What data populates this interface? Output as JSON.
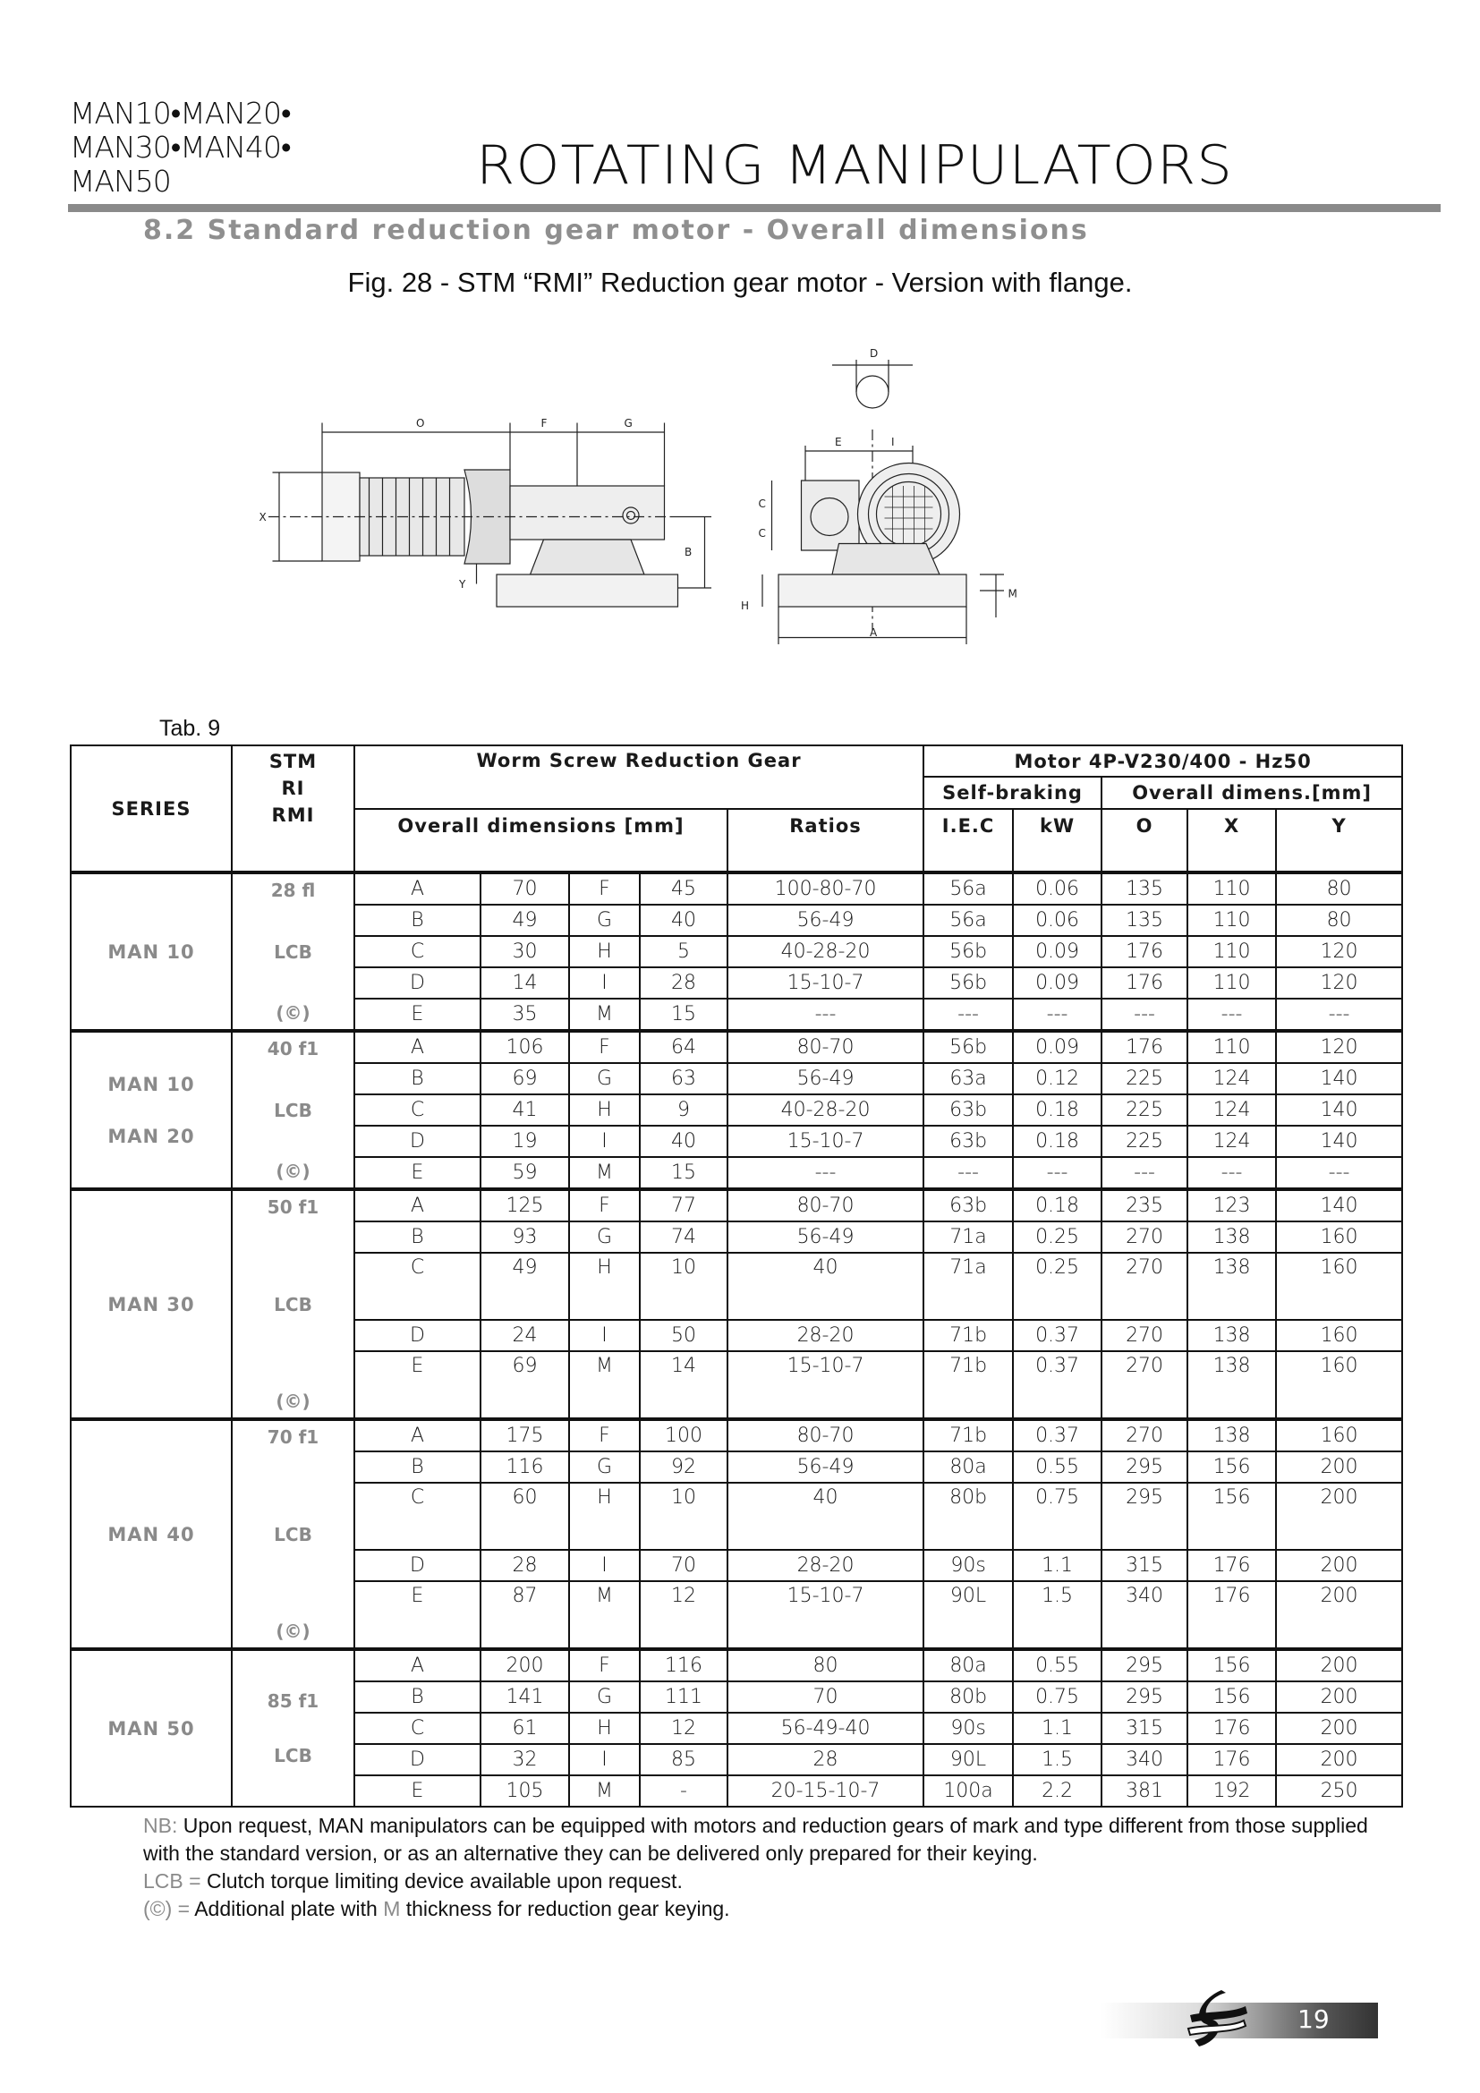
{
  "header": {
    "series_lines": [
      "MAN10•MAN20•",
      "MAN30•MAN40•",
      "MAN50"
    ],
    "title": "ROTATING MANIPULATORS",
    "section": "8.2  Standard reduction gear motor - Overall dimensions",
    "figure_caption": "Fig. 28 - STM “RMI” Reduction gear motor - Version with flange."
  },
  "drawing": {
    "labels": {
      "O": "O",
      "F": "F",
      "G": "G",
      "X": "X",
      "Y": "Y",
      "B": "B",
      "D": "D",
      "E": "E",
      "I": "I",
      "C1": "C",
      "C2": "C",
      "H": "H",
      "M": "M",
      "A": "A"
    }
  },
  "table": {
    "label": "Tab. 9",
    "headers": {
      "series": "SERIES",
      "stm": [
        "STM",
        "RI",
        "RMI"
      ],
      "worm": "Worm Screw Reduction Gear",
      "motor": "Motor  4P-V230/400 - Hz50",
      "self_braking": "Self-braking",
      "overall_motor": "Overall dimens.[mm]",
      "overall_gear": "Overall dimensions [mm]",
      "ratios": "Ratios",
      "iec": "I.E.C",
      "kw": "kW",
      "o": "O",
      "x": "X",
      "y": "Y"
    },
    "groups": [
      {
        "series": [
          "MAN 10"
        ],
        "stm": [
          "28 fl",
          "LCB",
          "(©)"
        ],
        "rows": [
          [
            "A",
            "70",
            "F",
            "45",
            "100-80-70",
            "56a",
            "0.06",
            "135",
            "110",
            "80"
          ],
          [
            "B",
            "49",
            "G",
            "40",
            "56-49",
            "56a",
            "0.06",
            "135",
            "110",
            "80"
          ],
          [
            "C",
            "30",
            "H",
            "5",
            "40-28-20",
            "56b",
            "0.09",
            "176",
            "110",
            "120"
          ],
          [
            "D",
            "14",
            "I",
            "28",
            "15-10-7",
            "56b",
            "0.09",
            "176",
            "110",
            "120"
          ],
          [
            "E",
            "35",
            "M",
            "15",
            "---",
            "---",
            "---",
            "---",
            "---",
            "---"
          ]
        ]
      },
      {
        "series": [
          "MAN 10",
          "MAN 20"
        ],
        "stm": [
          "40 f1",
          "LCB",
          "(©)"
        ],
        "rows": [
          [
            "A",
            "106",
            "F",
            "64",
            "80-70",
            "56b",
            "0.09",
            "176",
            "110",
            "120"
          ],
          [
            "B",
            "69",
            "G",
            "63",
            "56-49",
            "63a",
            "0.12",
            "225",
            "124",
            "140"
          ],
          [
            "C",
            "41",
            "H",
            "9",
            "40-28-20",
            "63b",
            "0.18",
            "225",
            "124",
            "140"
          ],
          [
            "D",
            "19",
            "I",
            "40",
            "15-10-7",
            "63b",
            "0.18",
            "225",
            "124",
            "140"
          ],
          [
            "E",
            "59",
            "M",
            "15",
            "---",
            "---",
            "---",
            "---",
            "---",
            "---"
          ]
        ]
      },
      {
        "series": [
          "MAN 30"
        ],
        "stm": [
          "50 f1",
          "LCB",
          "(©)"
        ],
        "rows": [
          [
            "A",
            "125",
            "F",
            "77",
            "80-70",
            "63b",
            "0.18",
            "235",
            "123",
            "140"
          ],
          [
            "B",
            "93",
            "G",
            "74",
            "56-49",
            "71a",
            "0.25",
            "270",
            "138",
            "160"
          ],
          [
            "C",
            "49",
            "H",
            "10",
            "40",
            "71a",
            "0.25",
            "270",
            "138",
            "160"
          ],
          [
            "D",
            "24",
            "I",
            "50",
            "28-20",
            "71b",
            "0.37",
            "270",
            "138",
            "160"
          ],
          [
            "E",
            "69",
            "M",
            "14",
            "15-10-7",
            "71b",
            "0.37",
            "270",
            "138",
            "160"
          ]
        ]
      },
      {
        "series": [
          "MAN 40"
        ],
        "stm": [
          "70 f1",
          "LCB",
          "(©)"
        ],
        "rows": [
          [
            "A",
            "175",
            "F",
            "100",
            "80-70",
            "71b",
            "0.37",
            "270",
            "138",
            "160"
          ],
          [
            "B",
            "116",
            "G",
            "92",
            "56-49",
            "80a",
            "0.55",
            "295",
            "156",
            "200"
          ],
          [
            "C",
            "60",
            "H",
            "10",
            "40",
            "80b",
            "0.75",
            "295",
            "156",
            "200"
          ],
          [
            "D",
            "28",
            "I",
            "70",
            "28-20",
            "90s",
            "1.1",
            "315",
            "176",
            "200"
          ],
          [
            "E",
            "87",
            "M",
            "12",
            "15-10-7",
            "90L",
            "1.5",
            "340",
            "176",
            "200"
          ]
        ]
      },
      {
        "series": [
          "MAN 50"
        ],
        "stm": [
          "85 f1",
          "LCB"
        ],
        "rows": [
          [
            "A",
            "200",
            "F",
            "116",
            "80",
            "80a",
            "0.55",
            "295",
            "156",
            "200"
          ],
          [
            "B",
            "141",
            "G",
            "111",
            "70",
            "80b",
            "0.75",
            "295",
            "156",
            "200"
          ],
          [
            "C",
            "61",
            "H",
            "12",
            "56-49-40",
            "90s",
            "1.1",
            "315",
            "176",
            "200"
          ],
          [
            "D",
            "32",
            "I",
            "85",
            "28",
            "90L",
            "1.5",
            "340",
            "176",
            "200"
          ],
          [
            "E",
            "105",
            "M",
            "-",
            "20-15-10-7",
            "100a",
            "2.2",
            "381",
            "192",
            "250"
          ]
        ]
      }
    ]
  },
  "notes": {
    "nb_key": "NB:",
    "nb_text": " Upon request, MAN manipulators can be equipped with motors and reduction gears of mark and type different from those supplied with the standard version, or as an alternative they can be delivered only prepared for their keying.",
    "lcb_key": "LCB =",
    "lcb_text": " Clutch torque limiting device available upon request.",
    "plate_key": "(©) =",
    "plate_text_1": " Additional plate with ",
    "plate_m": "M",
    "plate_text_2": " thickness for reduction gear keying."
  },
  "footer": {
    "page_number": "19",
    "logo_icon": "company-logo-icon"
  },
  "colors": {
    "accent_gray": "#8a8a8a",
    "text": "#111111"
  }
}
